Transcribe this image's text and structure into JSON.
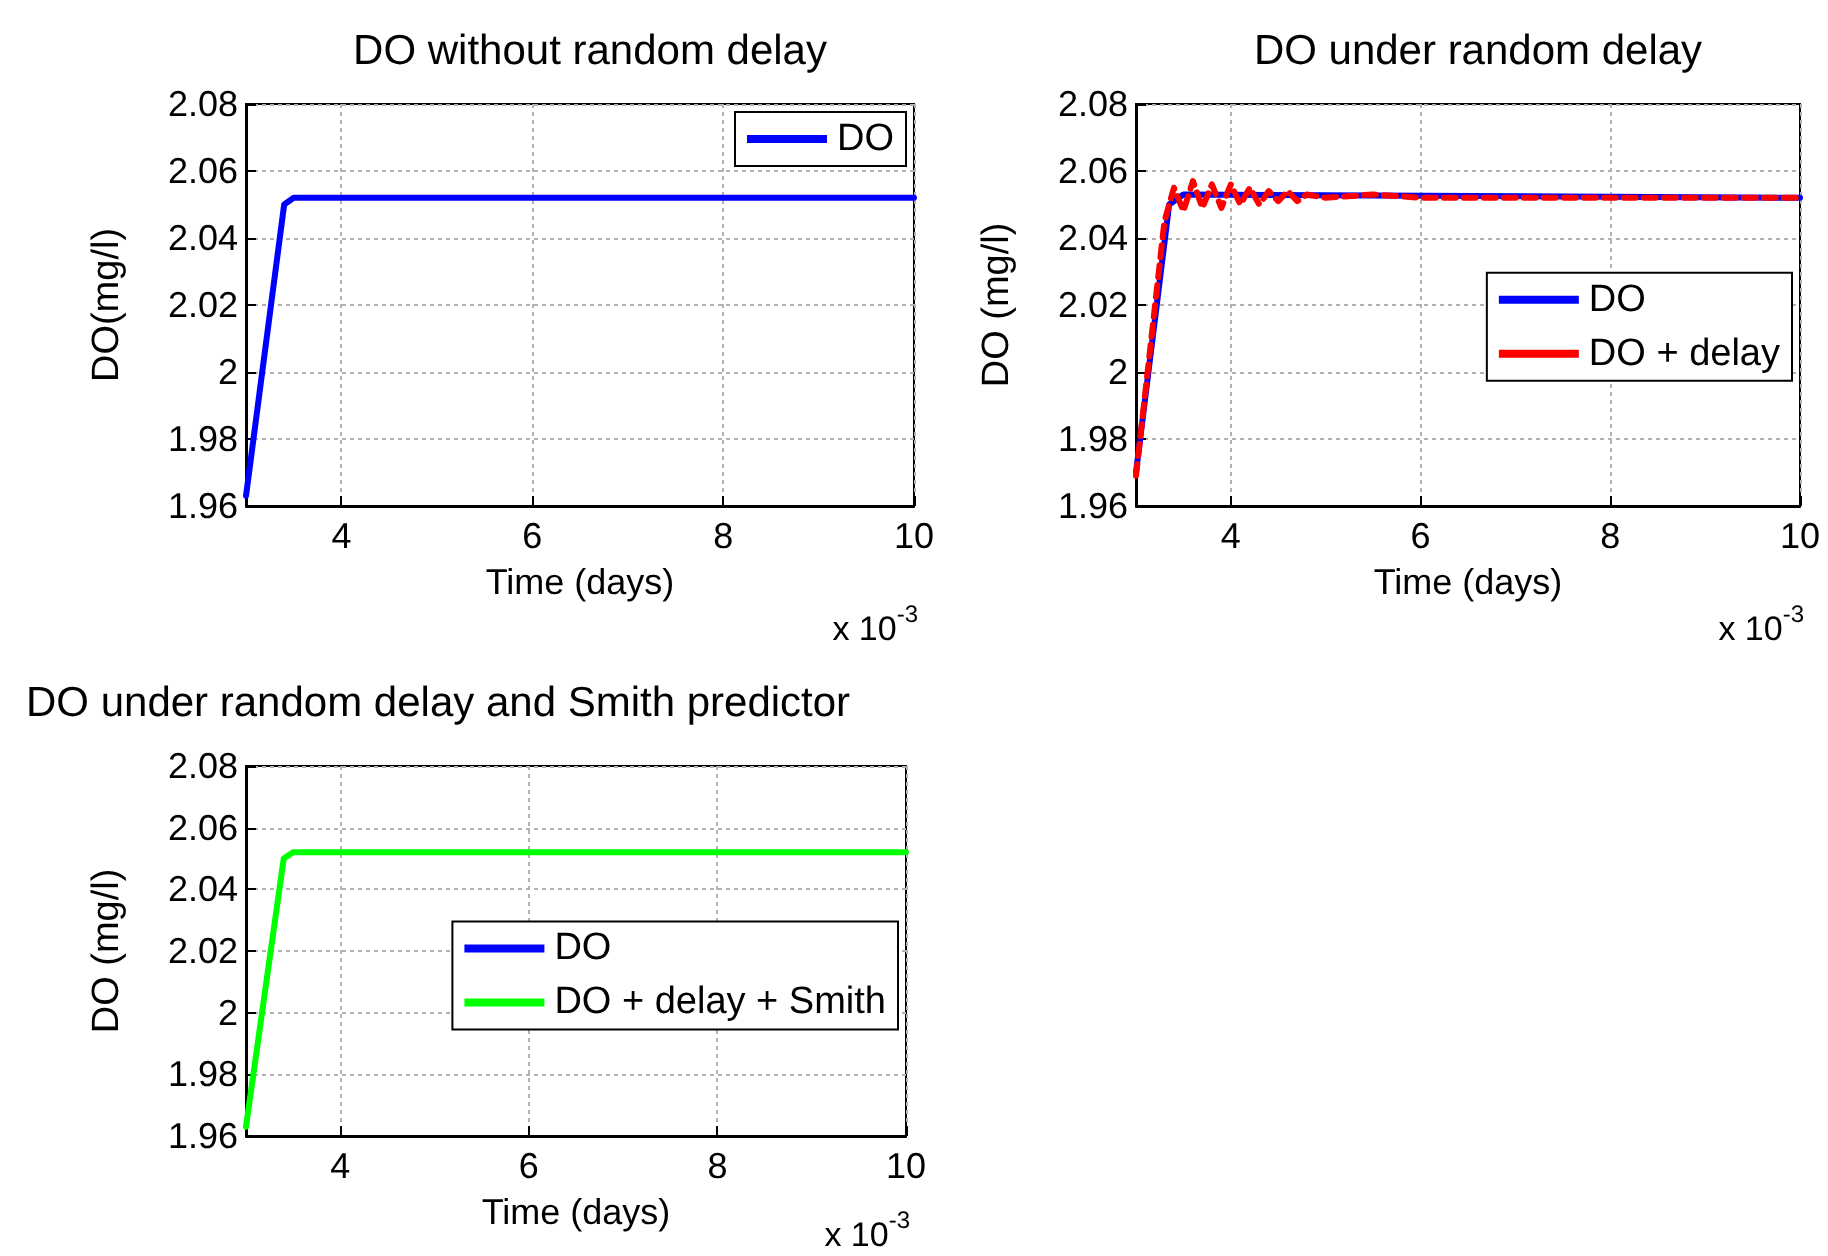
{
  "chart_data": [
    {
      "type": "line",
      "title": "DO without random delay",
      "xlabel": "Time (days)",
      "ylabel": "DO(mg/l)",
      "annotations": [
        "x 10$^{-3}$"
      ],
      "xlim": [
        3,
        10
      ],
      "xticks": [
        4,
        6,
        8,
        10
      ],
      "ylim": [
        1.96,
        2.08
      ],
      "yticks": [
        1.96,
        1.98,
        2,
        2.02,
        2.04,
        2.06,
        2.08
      ],
      "grid": true,
      "legend": "top right",
      "marker": "none",
      "series": [
        {
          "name": "DO",
          "color": "#0000ff",
          "line_style": "solid",
          "x": [
            3,
            3.4,
            3.5,
            10
          ],
          "values": [
            1.963,
            2.05,
            2.052,
            2.052
          ]
        }
      ]
    },
    {
      "type": "line",
      "title": "DO under random delay",
      "xlabel": "Time (days)",
      "ylabel": "DO (mg/l)",
      "annotations": [
        "x 10$^{-3}$"
      ],
      "xlim": [
        3,
        10
      ],
      "xticks": [
        4,
        6,
        8,
        10
      ],
      "ylim": [
        1.96,
        2.08
      ],
      "yticks": [
        1.96,
        1.98,
        2,
        2.02,
        2.04,
        2.06,
        2.08
      ],
      "grid": true,
      "legend": "right",
      "marker": "none",
      "series": [
        {
          "name": "DO",
          "color": "#0000ff",
          "line_style": "solid",
          "x": [
            3,
            3.35,
            3.5,
            10
          ],
          "values": [
            1.97,
            2.05,
            2.053,
            2.052
          ]
        },
        {
          "name": "DO + delay",
          "color": "#ff0000",
          "line_style": "dashed",
          "x": [
            3,
            3.3,
            3.4,
            3.5,
            3.6,
            3.7,
            3.8,
            3.9,
            4.0,
            4.1,
            4.2,
            4.3,
            4.4,
            4.5,
            4.6,
            4.7,
            4.8,
            5.0,
            5.5,
            6,
            7,
            8,
            10
          ],
          "values": [
            1.969,
            2.045,
            2.055,
            2.048,
            2.057,
            2.049,
            2.056,
            2.049,
            2.056,
            2.05,
            2.055,
            2.05,
            2.054,
            2.051,
            2.054,
            2.051,
            2.053,
            2.052,
            2.053,
            2.052,
            2.052,
            2.052,
            2.052
          ]
        }
      ]
    },
    {
      "type": "line",
      "title": "DO under random delay and Smith predictor",
      "xlabel": "Time (days)",
      "ylabel": "DO (mg/l)",
      "annotations": [
        "x 10$^{-3}$"
      ],
      "xlim": [
        3,
        10
      ],
      "xticks": [
        4,
        6,
        8,
        10
      ],
      "ylim": [
        1.96,
        2.08
      ],
      "yticks": [
        1.96,
        1.98,
        2,
        2.02,
        2.04,
        2.06,
        2.08
      ],
      "grid": true,
      "legend": "right",
      "marker": "none",
      "series": [
        {
          "name": "DO",
          "color": "#0000ff",
          "line_style": "solid"
        },
        {
          "name": "DO + delay + Smith",
          "color": "#00ff00",
          "line_style": "solid",
          "x": [
            3,
            3.4,
            3.5,
            10
          ],
          "values": [
            1.963,
            2.05,
            2.052,
            2.052
          ]
        }
      ]
    }
  ]
}
